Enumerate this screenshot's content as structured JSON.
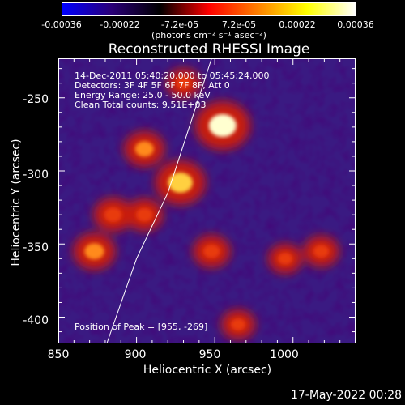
{
  "colorbar": {
    "ticks": [
      "-0.00036",
      "-0.00022",
      "-7.2e-05",
      "7.2e-05",
      "0.00022",
      "0.00036"
    ],
    "unit_label": "(photons cm⁻² s⁻¹ asec⁻²)",
    "range": [
      -0.00036,
      0.00036
    ],
    "colormap": [
      "#0000ff",
      "#2a0078",
      "#000000",
      "#ff0000",
      "#ff8000",
      "#ffff00",
      "#ffffff"
    ]
  },
  "info": {
    "line1": "14-Dec-2011 05:40:20.000 to 05:45:24.000",
    "line2": "Detectors: 3F 4F 5F 6F 7F 8F, Att 0",
    "line3": "Energy Range: 25.0 - 50.0 keV",
    "line4": "Clean     Total counts: 9.51E+03",
    "peak": "Position of Peak = [955, -269]"
  },
  "chart_data": {
    "type": "heatmap",
    "title": "Reconstructed RHESSI Image",
    "xlabel": "Heliocentric X (arcsec)",
    "ylabel": "Heliocentric Y (arcsec)",
    "xlim": [
      850,
      1040
    ],
    "ylim": [
      -418,
      -223
    ],
    "xticks": [
      "850",
      "900",
      "950",
      "1000"
    ],
    "yticks": [
      "-250",
      "-300",
      "-350",
      "-400"
    ],
    "peak": {
      "x": 955,
      "y": -269
    },
    "hot_regions": [
      {
        "x": 955,
        "y": -269,
        "intensity": 1.0
      },
      {
        "x": 928,
        "y": -308,
        "intensity": 0.85
      },
      {
        "x": 905,
        "y": -285,
        "intensity": 0.55
      },
      {
        "x": 873,
        "y": -355,
        "intensity": 0.6
      },
      {
        "x": 885,
        "y": -330,
        "intensity": 0.5
      },
      {
        "x": 948,
        "y": -355,
        "intensity": 0.45
      },
      {
        "x": 1018,
        "y": -355,
        "intensity": 0.4
      },
      {
        "x": 995,
        "y": -360,
        "intensity": 0.35
      },
      {
        "x": 905,
        "y": -330,
        "intensity": 0.45
      },
      {
        "x": 930,
        "y": -240,
        "intensity": 0.35
      },
      {
        "x": 965,
        "y": -405,
        "intensity": 0.35
      }
    ],
    "limb": [
      [
        881,
        -418
      ],
      [
        900,
        -360
      ],
      [
        920,
        -315
      ],
      [
        948,
        -223
      ]
    ]
  },
  "timestamp": "17-May-2022 00:28"
}
